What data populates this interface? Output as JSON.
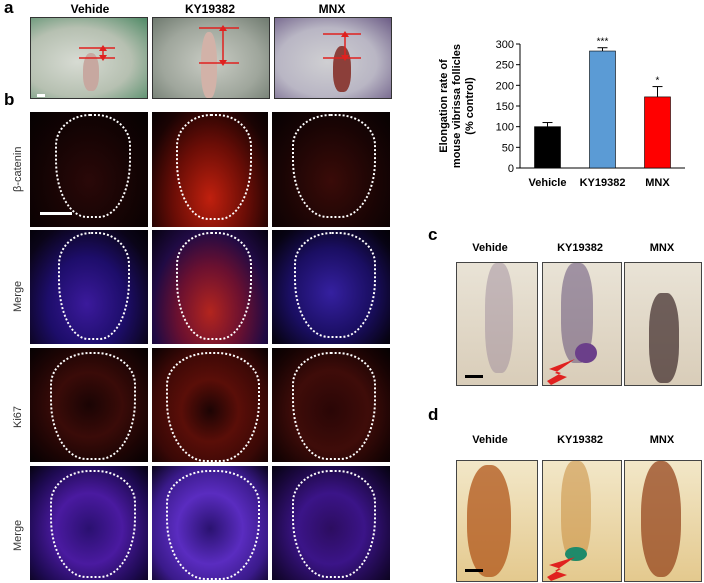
{
  "panels": {
    "a": "a",
    "b": "b",
    "c": "c",
    "d": "d"
  },
  "groups": [
    "Vehide",
    "KY19382",
    "MNX"
  ],
  "row_labels": [
    "β-catenin",
    "Merge",
    "Ki67",
    "Merge"
  ],
  "colors": {
    "vehicle_bar": "#000000",
    "ky_bar": "#5b9bd5",
    "mnx_bar": "#ff0000",
    "annotation": "#e0211f",
    "dotted_outline": "#ffffff"
  },
  "chart_data": {
    "type": "bar",
    "categories": [
      "Vehicle",
      "KY19382",
      "MNX"
    ],
    "values": [
      100,
      283,
      172
    ],
    "errors": [
      10,
      8,
      25
    ],
    "significance": [
      "",
      "***",
      "*"
    ],
    "ylabel": "Elongation rate of mouse vibrissa follicles (% control)",
    "ylabel_lines": [
      "Elongation rate of",
      "mouse vibrissa follicles",
      "(% control)"
    ],
    "ylim": [
      0,
      300
    ],
    "yticks": [
      0,
      50,
      100,
      150,
      200,
      250,
      300
    ],
    "grid": false
  }
}
